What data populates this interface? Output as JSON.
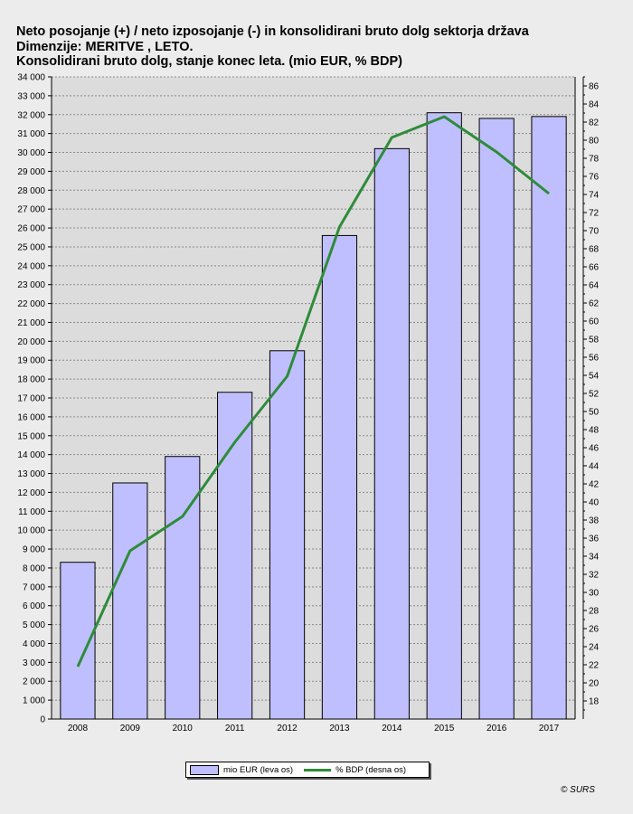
{
  "title_lines": [
    "Neto posojanje (+) / neto izposojanje (-) in konsolidirani bruto dolg sektorja država",
    "Dimenzije: MERITVE , LETO.",
    "Konsolidirani bruto dolg, stanje konec leta. (mio EUR, % BDP)"
  ],
  "legend": {
    "bar_label": "mio EUR (leva os)",
    "line_label": "% BDP (desna os)"
  },
  "source": "© SURS",
  "colors": {
    "bar_fill": "#bfbfff",
    "line": "#2e8b3a",
    "plot_bg": "#dcdcdc"
  },
  "chart_data": {
    "type": "bar",
    "categories": [
      "2008",
      "2009",
      "2010",
      "2011",
      "2012",
      "2013",
      "2014",
      "2015",
      "2016",
      "2017"
    ],
    "series": [
      {
        "name": "mio EUR (leva os)",
        "type": "bar",
        "axis": "left",
        "values": [
          8300,
          12500,
          13900,
          17300,
          19500,
          25600,
          30200,
          32100,
          31800,
          31900
        ]
      },
      {
        "name": "% BDP (desna os)",
        "type": "line",
        "axis": "right",
        "values": [
          21.8,
          34.6,
          38.4,
          46.6,
          53.9,
          70.4,
          80.3,
          82.6,
          78.7,
          74.1
        ]
      }
    ],
    "ylim_left": [
      0,
      34000
    ],
    "yticks_left": [
      0,
      1000,
      2000,
      3000,
      4000,
      5000,
      6000,
      7000,
      8000,
      9000,
      10000,
      11000,
      12000,
      13000,
      14000,
      15000,
      16000,
      17000,
      18000,
      19000,
      20000,
      21000,
      22000,
      23000,
      24000,
      25000,
      26000,
      27000,
      28000,
      29000,
      30000,
      31000,
      32000,
      33000,
      34000
    ],
    "ytick_labels_left": [
      "0",
      "1 000",
      "2 000",
      "3 000",
      "4 000",
      "5 000",
      "6 000",
      "7 000",
      "8 000",
      "9 000",
      "10 000",
      "11 000",
      "12 000",
      "13 000",
      "14 000",
      "15 000",
      "16 000",
      "17 000",
      "18 000",
      "19 000",
      "20 000",
      "21 000",
      "22 000",
      "23 000",
      "24 000",
      "25 000",
      "26 000",
      "27 000",
      "28 000",
      "29 000",
      "30 000",
      "31 000",
      "32 000",
      "33 000",
      "34 000"
    ],
    "ylim_right": [
      16,
      87
    ],
    "yticks_right": [
      18,
      20,
      22,
      24,
      26,
      28,
      30,
      32,
      34,
      36,
      38,
      40,
      42,
      44,
      46,
      48,
      50,
      52,
      54,
      56,
      58,
      60,
      62,
      64,
      66,
      68,
      70,
      72,
      74,
      76,
      78,
      80,
      82,
      84,
      86
    ],
    "grid": true,
    "legend_position": "bottom"
  }
}
